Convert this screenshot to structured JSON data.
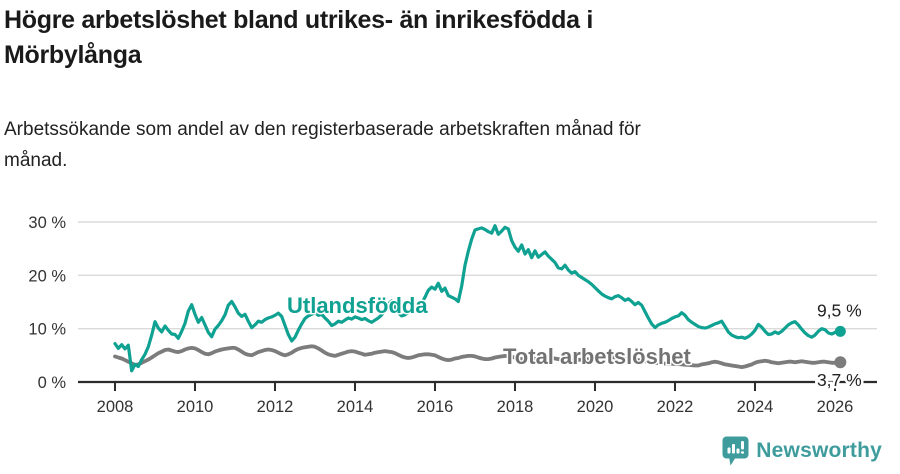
{
  "header": {
    "title": "Högre arbetslöshet bland utrikes- än inrikesfödda i\nMörbylånga",
    "subtitle": "Arbetssökande som andel av den registerbaserade arbetskraften månad för\nmånad."
  },
  "footer": {
    "brand": "Newsworthy",
    "brand_color": "#3e9c9d"
  },
  "colors": {
    "teal_series": "#0fa191",
    "gray_series": "#7c7c7c",
    "gray_label": "#737373",
    "axis_text": "#333333",
    "gridline": "#dadada",
    "axis_line": "#2b2b2b",
    "end_label_text": "#222222"
  },
  "chart_data": {
    "type": "line",
    "title": "Högre arbetslöshet bland utrikes- än inrikesfödda i Mörbylånga",
    "subtitle": "Arbetssökande som andel av den registerbaserade arbetskraften månad för månad.",
    "xlabel": "",
    "ylabel": "",
    "ylim": [
      0,
      30
    ],
    "y_ticks": [
      0,
      10,
      20,
      30
    ],
    "y_tick_suffix": " %",
    "x_ticks": [
      2008,
      2010,
      2012,
      2014,
      2016,
      2018,
      2020,
      2022,
      2024,
      2026
    ],
    "x_start": 2008.0,
    "points_per_year": 12,
    "grid": "horizontal-only",
    "legend": "inline-labels",
    "series": [
      {
        "id": "utlandsfodda",
        "label": "Utlandsfödda",
        "end_label": "9,5 %",
        "end_value": 9.5,
        "color": "#0fa191",
        "values": [
          7.2,
          6.3,
          7.0,
          6.2,
          6.9,
          2.1,
          3.3,
          2.9,
          4.2,
          5.2,
          6.6,
          8.8,
          11.3,
          10.1,
          9.4,
          10.5,
          9.7,
          9.0,
          8.9,
          8.2,
          9.5,
          11.0,
          13.3,
          14.5,
          12.7,
          11.2,
          12.1,
          10.7,
          9.3,
          8.5,
          9.9,
          10.6,
          11.5,
          12.6,
          14.4,
          15.1,
          14.1,
          12.9,
          12.3,
          12.7,
          11.4,
          10.2,
          10.7,
          11.4,
          11.2,
          11.7,
          12.0,
          12.2,
          12.5,
          12.9,
          12.3,
          10.6,
          8.9,
          7.7,
          8.4,
          9.7,
          10.9,
          11.9,
          12.4,
          12.7,
          13.0,
          12.5,
          12.7,
          12.0,
          11.4,
          10.6,
          10.9,
          11.4,
          11.2,
          11.6,
          12.0,
          11.8,
          12.2,
          12.0,
          11.7,
          11.9,
          11.5,
          11.2,
          11.6,
          12.0,
          12.6,
          13.5,
          14.6,
          15.2,
          14.0,
          13.0,
          12.4,
          12.6,
          13.0,
          13.4,
          13.7,
          14.2,
          14.8,
          15.9,
          17.2,
          17.8,
          17.4,
          18.5,
          17.0,
          17.6,
          16.2,
          15.9,
          15.6,
          15.1,
          18.0,
          21.9,
          24.5,
          26.8,
          28.5,
          28.7,
          28.9,
          28.6,
          28.2,
          27.9,
          29.3,
          27.7,
          28.3,
          29.0,
          28.7,
          26.5,
          25.3,
          24.5,
          25.7,
          24.0,
          24.8,
          23.3,
          24.6,
          23.4,
          23.9,
          24.4,
          23.6,
          23.0,
          22.4,
          21.4,
          21.2,
          21.9,
          21.0,
          20.4,
          20.7,
          20.0,
          19.6,
          19.2,
          18.8,
          18.3,
          17.7,
          17.1,
          16.5,
          16.1,
          15.8,
          15.6,
          16.0,
          16.2,
          15.8,
          15.3,
          15.6,
          15.1,
          14.5,
          14.9,
          14.4,
          13.2,
          12.0,
          10.9,
          10.2,
          10.7,
          11.0,
          11.2,
          11.5,
          11.9,
          12.2,
          12.4,
          13.0,
          12.5,
          11.7,
          11.2,
          10.8,
          10.4,
          10.2,
          10.1,
          10.3,
          10.6,
          10.9,
          11.1,
          11.4,
          10.4,
          9.4,
          8.8,
          8.5,
          8.3,
          8.4,
          8.2,
          8.5,
          9.0,
          9.7,
          10.8,
          10.3,
          9.5,
          8.9,
          9.0,
          9.4,
          9.1,
          9.5,
          10.1,
          10.7,
          11.1,
          11.3,
          10.7,
          9.9,
          9.2,
          8.7,
          8.4,
          8.8,
          9.5,
          10.0,
          9.8,
          9.2,
          9.0,
          9.3,
          9.5
        ]
      },
      {
        "id": "total",
        "label": "Total arbetslöshet",
        "end_label": "3,7 %",
        "end_value": 3.7,
        "color": "#7c7c7c",
        "values": [
          4.8,
          4.6,
          4.4,
          4.1,
          3.8,
          3.5,
          3.2,
          3.3,
          3.6,
          3.9,
          4.2,
          4.6,
          5.0,
          5.4,
          5.7,
          6.0,
          6.1,
          5.9,
          5.7,
          5.6,
          5.8,
          6.1,
          6.3,
          6.4,
          6.3,
          6.0,
          5.6,
          5.3,
          5.2,
          5.4,
          5.7,
          5.9,
          6.1,
          6.2,
          6.3,
          6.4,
          6.4,
          6.1,
          5.7,
          5.3,
          5.1,
          5.0,
          5.3,
          5.6,
          5.8,
          6.0,
          6.1,
          6.0,
          5.8,
          5.5,
          5.2,
          5.0,
          5.2,
          5.5,
          5.9,
          6.2,
          6.4,
          6.5,
          6.6,
          6.7,
          6.6,
          6.3,
          5.9,
          5.5,
          5.2,
          5.0,
          4.9,
          5.1,
          5.3,
          5.5,
          5.7,
          5.8,
          5.7,
          5.5,
          5.3,
          5.1,
          5.2,
          5.3,
          5.5,
          5.6,
          5.7,
          5.8,
          5.7,
          5.6,
          5.4,
          5.1,
          4.8,
          4.6,
          4.5,
          4.6,
          4.8,
          5.0,
          5.1,
          5.2,
          5.2,
          5.1,
          5.0,
          4.7,
          4.4,
          4.2,
          4.1,
          4.2,
          4.4,
          4.5,
          4.7,
          4.8,
          4.9,
          4.9,
          4.8,
          4.6,
          4.4,
          4.3,
          4.3,
          4.4,
          4.6,
          4.7,
          4.8,
          4.9,
          4.8,
          4.7,
          4.6,
          4.4,
          4.3,
          4.25,
          4.2,
          4.3,
          4.4,
          4.45,
          4.5,
          4.55,
          4.6,
          4.5,
          4.4,
          4.3,
          4.2,
          4.1,
          4.0,
          4.05,
          4.1,
          4.15,
          4.2,
          4.25,
          4.3,
          4.35,
          4.4,
          4.5,
          4.6,
          4.65,
          4.7,
          4.65,
          4.6,
          4.5,
          4.4,
          4.35,
          4.3,
          4.25,
          4.2,
          4.1,
          4.0,
          3.9,
          3.8,
          3.7,
          3.6,
          3.55,
          3.5,
          3.45,
          3.4,
          3.4,
          3.4,
          3.35,
          3.3,
          3.25,
          3.2,
          3.15,
          3.1,
          3.1,
          3.3,
          3.4,
          3.5,
          3.7,
          3.8,
          3.7,
          3.5,
          3.3,
          3.2,
          3.1,
          3.0,
          2.9,
          2.8,
          2.9,
          3.1,
          3.3,
          3.6,
          3.8,
          3.9,
          4.0,
          3.9,
          3.7,
          3.6,
          3.5,
          3.6,
          3.7,
          3.8,
          3.8,
          3.7,
          3.8,
          3.9,
          3.8,
          3.7,
          3.6,
          3.6,
          3.7,
          3.8,
          3.8,
          3.7,
          3.6,
          3.6,
          3.7
        ]
      }
    ]
  }
}
